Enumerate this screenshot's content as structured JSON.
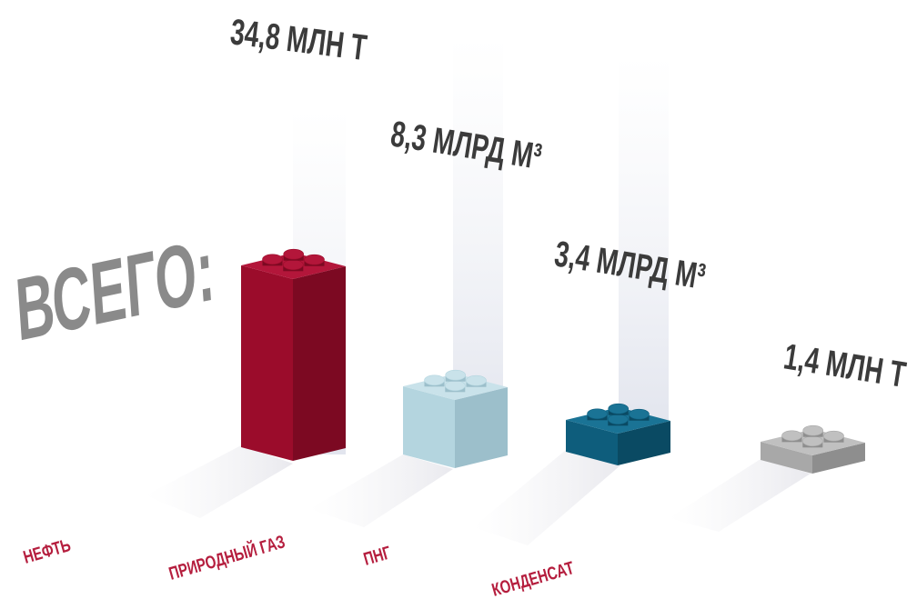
{
  "title": "ВСЕГО:",
  "values": [
    "34,8 МЛН Т",
    "8,3  МЛРД М³",
    "3,4 МЛРД М³",
    "1,4 МЛН Т"
  ],
  "labels": [
    "НЕФТЬ",
    "ПРИРОДНЫЙ ГАЗ",
    "ПНГ",
    "КОНДЕНСАТ"
  ]
}
